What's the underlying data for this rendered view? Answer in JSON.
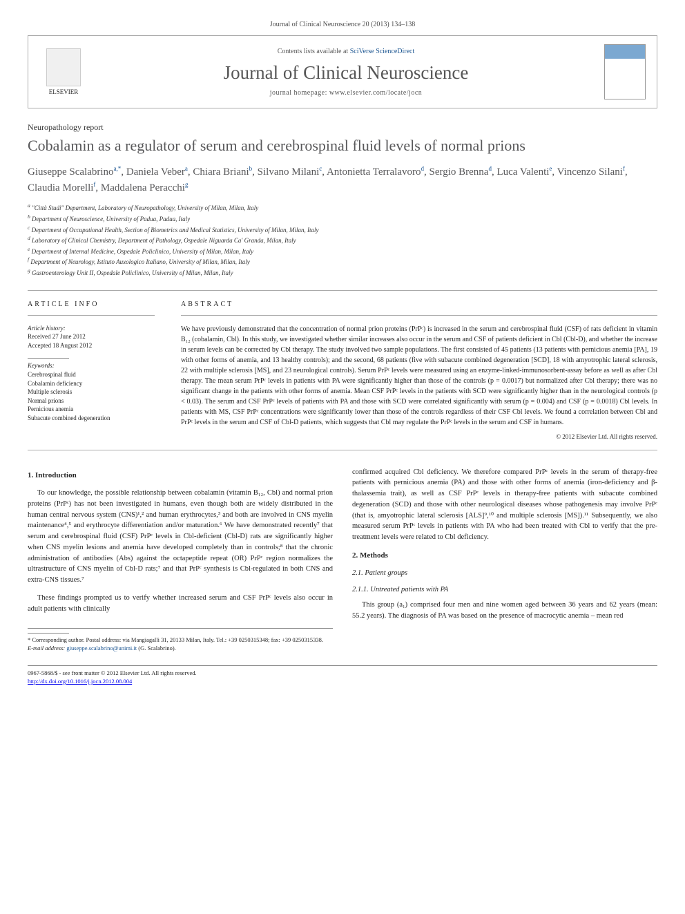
{
  "journal_ref": "Journal of Clinical Neuroscience 20 (2013) 134–138",
  "header": {
    "contents_prefix": "Contents lists available at ",
    "contents_link": "SciVerse ScienceDirect",
    "journal_name": "Journal of Clinical Neuroscience",
    "homepage_prefix": "journal homepage: ",
    "homepage_url": "www.elsevier.com/locate/jocn",
    "elsevier_label": "ELSEVIER"
  },
  "article_type": "Neuropathology report",
  "title": "Cobalamin as a regulator of serum and cerebrospinal fluid levels of normal prions",
  "authors": [
    {
      "name": "Giuseppe Scalabrino",
      "marks": "a,*"
    },
    {
      "name": "Daniela Veber",
      "marks": "a"
    },
    {
      "name": "Chiara Briani",
      "marks": "b"
    },
    {
      "name": "Silvano Milani",
      "marks": "c"
    },
    {
      "name": "Antonietta Terralavoro",
      "marks": "d"
    },
    {
      "name": "Sergio Brenna",
      "marks": "d"
    },
    {
      "name": "Luca Valenti",
      "marks": "e"
    },
    {
      "name": "Vincenzo Silani",
      "marks": "f"
    },
    {
      "name": "Claudia Morelli",
      "marks": "f"
    },
    {
      "name": "Maddalena Peracchi",
      "marks": "g"
    }
  ],
  "affiliations": [
    {
      "mark": "a",
      "text": "\"Città Studi\" Department, Laboratory of Neuropathology, University of Milan, Milan, Italy"
    },
    {
      "mark": "b",
      "text": "Department of Neuroscience, University of Padua, Padua, Italy"
    },
    {
      "mark": "c",
      "text": "Department of Occupational Health, Section of Biometrics and Medical Statistics, University of Milan, Milan, Italy"
    },
    {
      "mark": "d",
      "text": "Laboratory of Clinical Chemistry, Department of Pathology, Ospedale Niguarda Ca' Granda, Milan, Italy"
    },
    {
      "mark": "e",
      "text": "Department of Internal Medicine, Ospedale Policlinico, University of Milan, Milan, Italy"
    },
    {
      "mark": "f",
      "text": "Department of Neurology, Istituto Auxologico Italiano, University of Milan, Milan, Italy"
    },
    {
      "mark": "g",
      "text": "Gastroenterology Unit II, Ospedale Policlinico, University of Milan, Milan, Italy"
    }
  ],
  "article_info": {
    "heading": "ARTICLE INFO",
    "history_label": "Article history:",
    "received": "Received 27 June 2012",
    "accepted": "Accepted 18 August 2012",
    "keywords_label": "Keywords:",
    "keywords": [
      "Cerebrospinal fluid",
      "Cobalamin deficiency",
      "Multiple sclerosis",
      "Normal prions",
      "Pernicious anemia",
      "Subacute combined degeneration"
    ]
  },
  "abstract": {
    "heading": "ABSTRACT",
    "text": "We have previously demonstrated that the concentration of normal prion proteins (PrPᶜ) is increased in the serum and cerebrospinal fluid (CSF) of rats deficient in vitamin B₁₂ (cobalamin, Cbl). In this study, we investigated whether similar increases also occur in the serum and CSF of patients deficient in Cbl (Cbl-D), and whether the increase in serum levels can be corrected by Cbl therapy. The study involved two sample populations. The first consisted of 45 patients (13 patients with pernicious anemia [PA], 19 with other forms of anemia, and 13 healthy controls); and the second, 68 patients (five with subacute combined degeneration [SCD], 18 with amyotrophic lateral sclerosis, 22 with multiple sclerosis [MS], and 23 neurological controls). Serum PrPᶜ levels were measured using an enzyme-linked-immunosorbent-assay before as well as after Cbl therapy. The mean serum PrPᶜ levels in patients with PA were significantly higher than those of the controls (p = 0.0017) but normalized after Cbl therapy; there was no significant change in the patients with other forms of anemia. Mean CSF PrPᶜ levels in the patients with SCD were significantly higher than in the neurological controls (p < 0.03). The serum and CSF PrPᶜ levels of patients with PA and those with SCD were correlated significantly with serum (p = 0.004) and CSF (p = 0.0018) Cbl levels. In patients with MS, CSF PrPᶜ concentrations were significantly lower than those of the controls regardless of their CSF Cbl levels. We found a correlation between Cbl and PrPᶜ levels in the serum and CSF of Cbl-D patients, which suggests that Cbl may regulate the PrPᶜ levels in the serum and CSF in humans.",
    "copyright": "© 2012 Elsevier Ltd. All rights reserved."
  },
  "sections": {
    "intro_heading": "1. Introduction",
    "intro_p1": "To our knowledge, the possible relationship between cobalamin (vitamin B₁₂, Cbl) and normal prion proteins (PrPᶜ) has not been investigated in humans, even though both are widely distributed in the human central nervous system (CNS)¹,² and human erythrocytes,³ and both are involved in CNS myelin maintenance⁴,⁵ and erythrocyte differentiation and/or maturation.⁶ We have demonstrated recently⁷ that serum and cerebrospinal fluid (CSF) PrPᶜ levels in Cbl-deficient (Cbl-D) rats are significantly higher when CNS myelin lesions and anemia have developed completely than in controls;⁸ that the chronic administration of antibodies (Abs) against the octapeptide repeat (OR) PrPᶜ region normalizes the ultrastructure of CNS myelin of Cbl-D rats;⁷ and that PrPᶜ synthesis is Cbl-regulated in both CNS and extra-CNS tissues.⁷",
    "intro_p2": "These findings prompted us to verify whether increased serum and CSF PrPᶜ levels also occur in adult patients with clinically",
    "intro_p3": "confirmed acquired Cbl deficiency. We therefore compared PrPᶜ levels in the serum of therapy-free patients with pernicious anemia (PA) and those with other forms of anemia (iron-deficiency and β-thalassemia trait), as well as CSF PrPᶜ levels in therapy-free patients with subacute combined degeneration (SCD) and those with other neurological diseases whose pathogenesis may involve PrPᶜ (that is, amyotrophic lateral sclerosis [ALS]⁹,¹⁰ and multiple sclerosis [MS]).¹¹ Subsequently, we also measured serum PrPᶜ levels in patients with PA who had been treated with Cbl to verify that the pre-treatment levels were related to Cbl deficiency.",
    "methods_heading": "2. Methods",
    "patient_groups_heading": "2.1. Patient groups",
    "untreated_pa_heading": "2.1.1. Untreated patients with PA",
    "untreated_pa_text": "This group (a₁) comprised four men and nine women aged between 36 years and 62 years (mean: 55.2 years). The diagnosis of PA was based on the presence of macrocytic anemia – mean red"
  },
  "footer": {
    "corresponding": "* Corresponding author. Postal address: via Mangiagalli 31, 20133 Milan, Italy. Tel.: +39 0250315348; fax: +39 0250315338.",
    "email_label": "E-mail address: ",
    "email": "giuseppe.scalabrino@unimi.it",
    "email_suffix": " (G. Scalabrino).",
    "front_matter": "0967-5868/$ - see front matter © 2012 Elsevier Ltd. All rights reserved.",
    "doi": "http://dx.doi.org/10.1016/j.jocn.2012.08.004"
  }
}
